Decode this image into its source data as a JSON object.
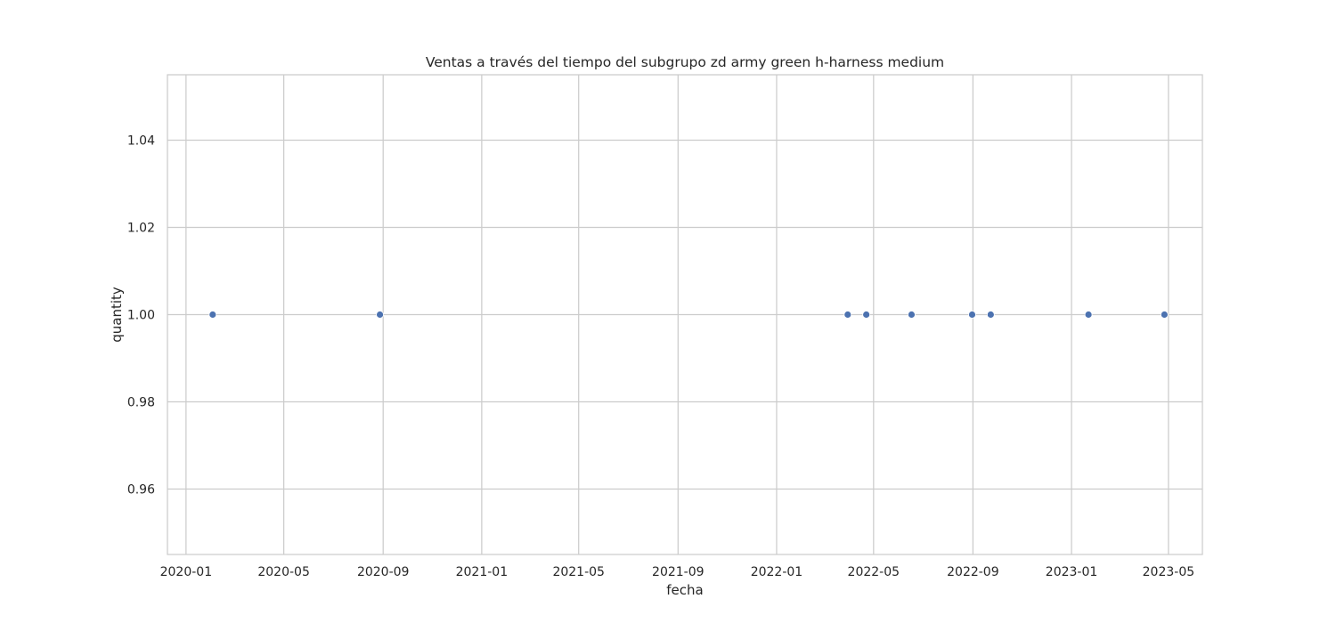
{
  "chart_data": {
    "type": "scatter",
    "title": "Ventas a través del tiempo del subgrupo zd army green h-harness medium",
    "xlabel": "fecha",
    "ylabel": "quantity",
    "x_ticks": [
      "2020-01",
      "2020-05",
      "2020-09",
      "2021-01",
      "2021-05",
      "2021-09",
      "2022-01",
      "2022-05",
      "2022-09",
      "2023-01",
      "2023-05"
    ],
    "y_ticks": [
      "0.96",
      "0.98",
      "1.00",
      "1.02",
      "1.04"
    ],
    "xlim": [
      "2019-12-09",
      "2023-06-12"
    ],
    "ylim": [
      0.945,
      1.055
    ],
    "grid": true,
    "series": [
      {
        "color": "#4c72b0",
        "points": [
          {
            "x": "2020-02-03",
            "y": 1.0
          },
          {
            "x": "2020-08-28",
            "y": 1.0
          },
          {
            "x": "2022-03-30",
            "y": 1.0
          },
          {
            "x": "2022-04-22",
            "y": 1.0
          },
          {
            "x": "2022-06-17",
            "y": 1.0
          },
          {
            "x": "2022-08-31",
            "y": 1.0
          },
          {
            "x": "2022-09-23",
            "y": 1.0
          },
          {
            "x": "2023-01-22",
            "y": 1.0
          },
          {
            "x": "2023-04-26",
            "y": 1.0
          }
        ]
      }
    ]
  },
  "colors": {
    "grid": "#cccccc",
    "spine": "#cccccc",
    "text": "#262626",
    "point": "#4c72b0"
  }
}
